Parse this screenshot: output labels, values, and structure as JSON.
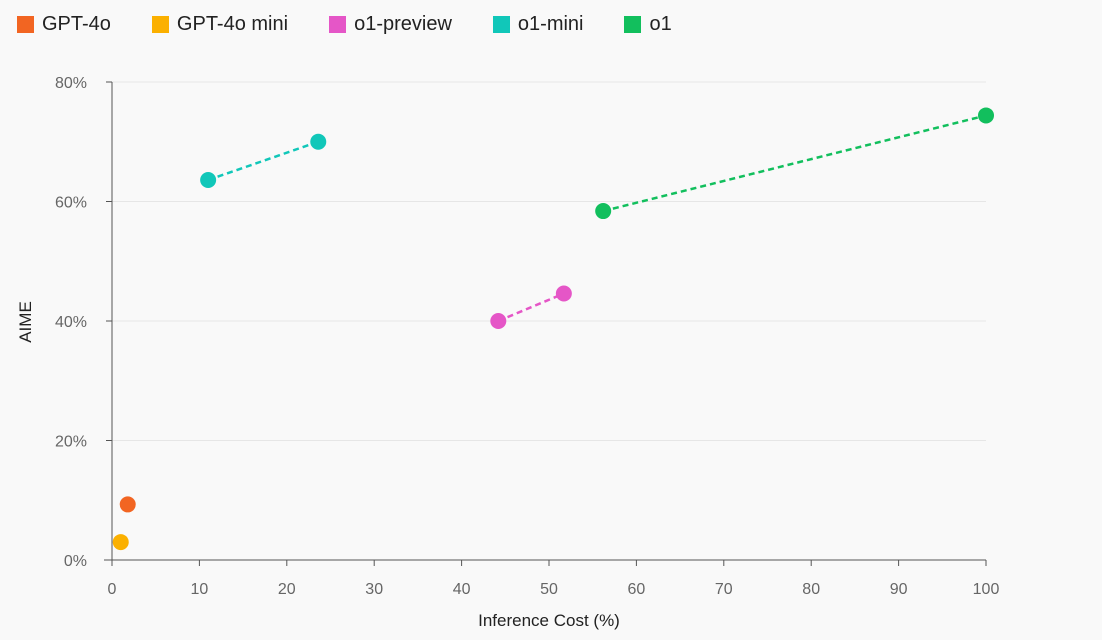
{
  "chart_data": {
    "type": "scatter",
    "xlabel": "Inference Cost (%)",
    "ylabel": "AIME",
    "xlim": [
      0,
      100
    ],
    "ylim": [
      0,
      80
    ],
    "xticks": [
      0,
      10,
      20,
      30,
      40,
      50,
      60,
      70,
      80,
      90,
      100
    ],
    "yticks": [
      0,
      20,
      40,
      60,
      80
    ],
    "ytick_suffix": "%",
    "grid": "horizontal",
    "legend_position": "top-left",
    "series": [
      {
        "name": "GPT-4o",
        "color": "#f26522",
        "connected": false,
        "points": [
          [
            1.8,
            9.3
          ]
        ]
      },
      {
        "name": "GPT-4o mini",
        "color": "#fbb000",
        "connected": false,
        "points": [
          [
            1.0,
            3.0
          ]
        ]
      },
      {
        "name": "o1-preview",
        "color": "#e556c7",
        "connected": true,
        "points": [
          [
            44.2,
            40.0
          ],
          [
            51.7,
            44.6
          ]
        ]
      },
      {
        "name": "o1-mini",
        "color": "#11c7b9",
        "connected": true,
        "points": [
          [
            11.0,
            63.6
          ],
          [
            23.6,
            70.0
          ]
        ]
      },
      {
        "name": "o1",
        "color": "#12bf5d",
        "connected": true,
        "points": [
          [
            56.2,
            58.4
          ],
          [
            100.0,
            74.4
          ]
        ]
      }
    ]
  }
}
